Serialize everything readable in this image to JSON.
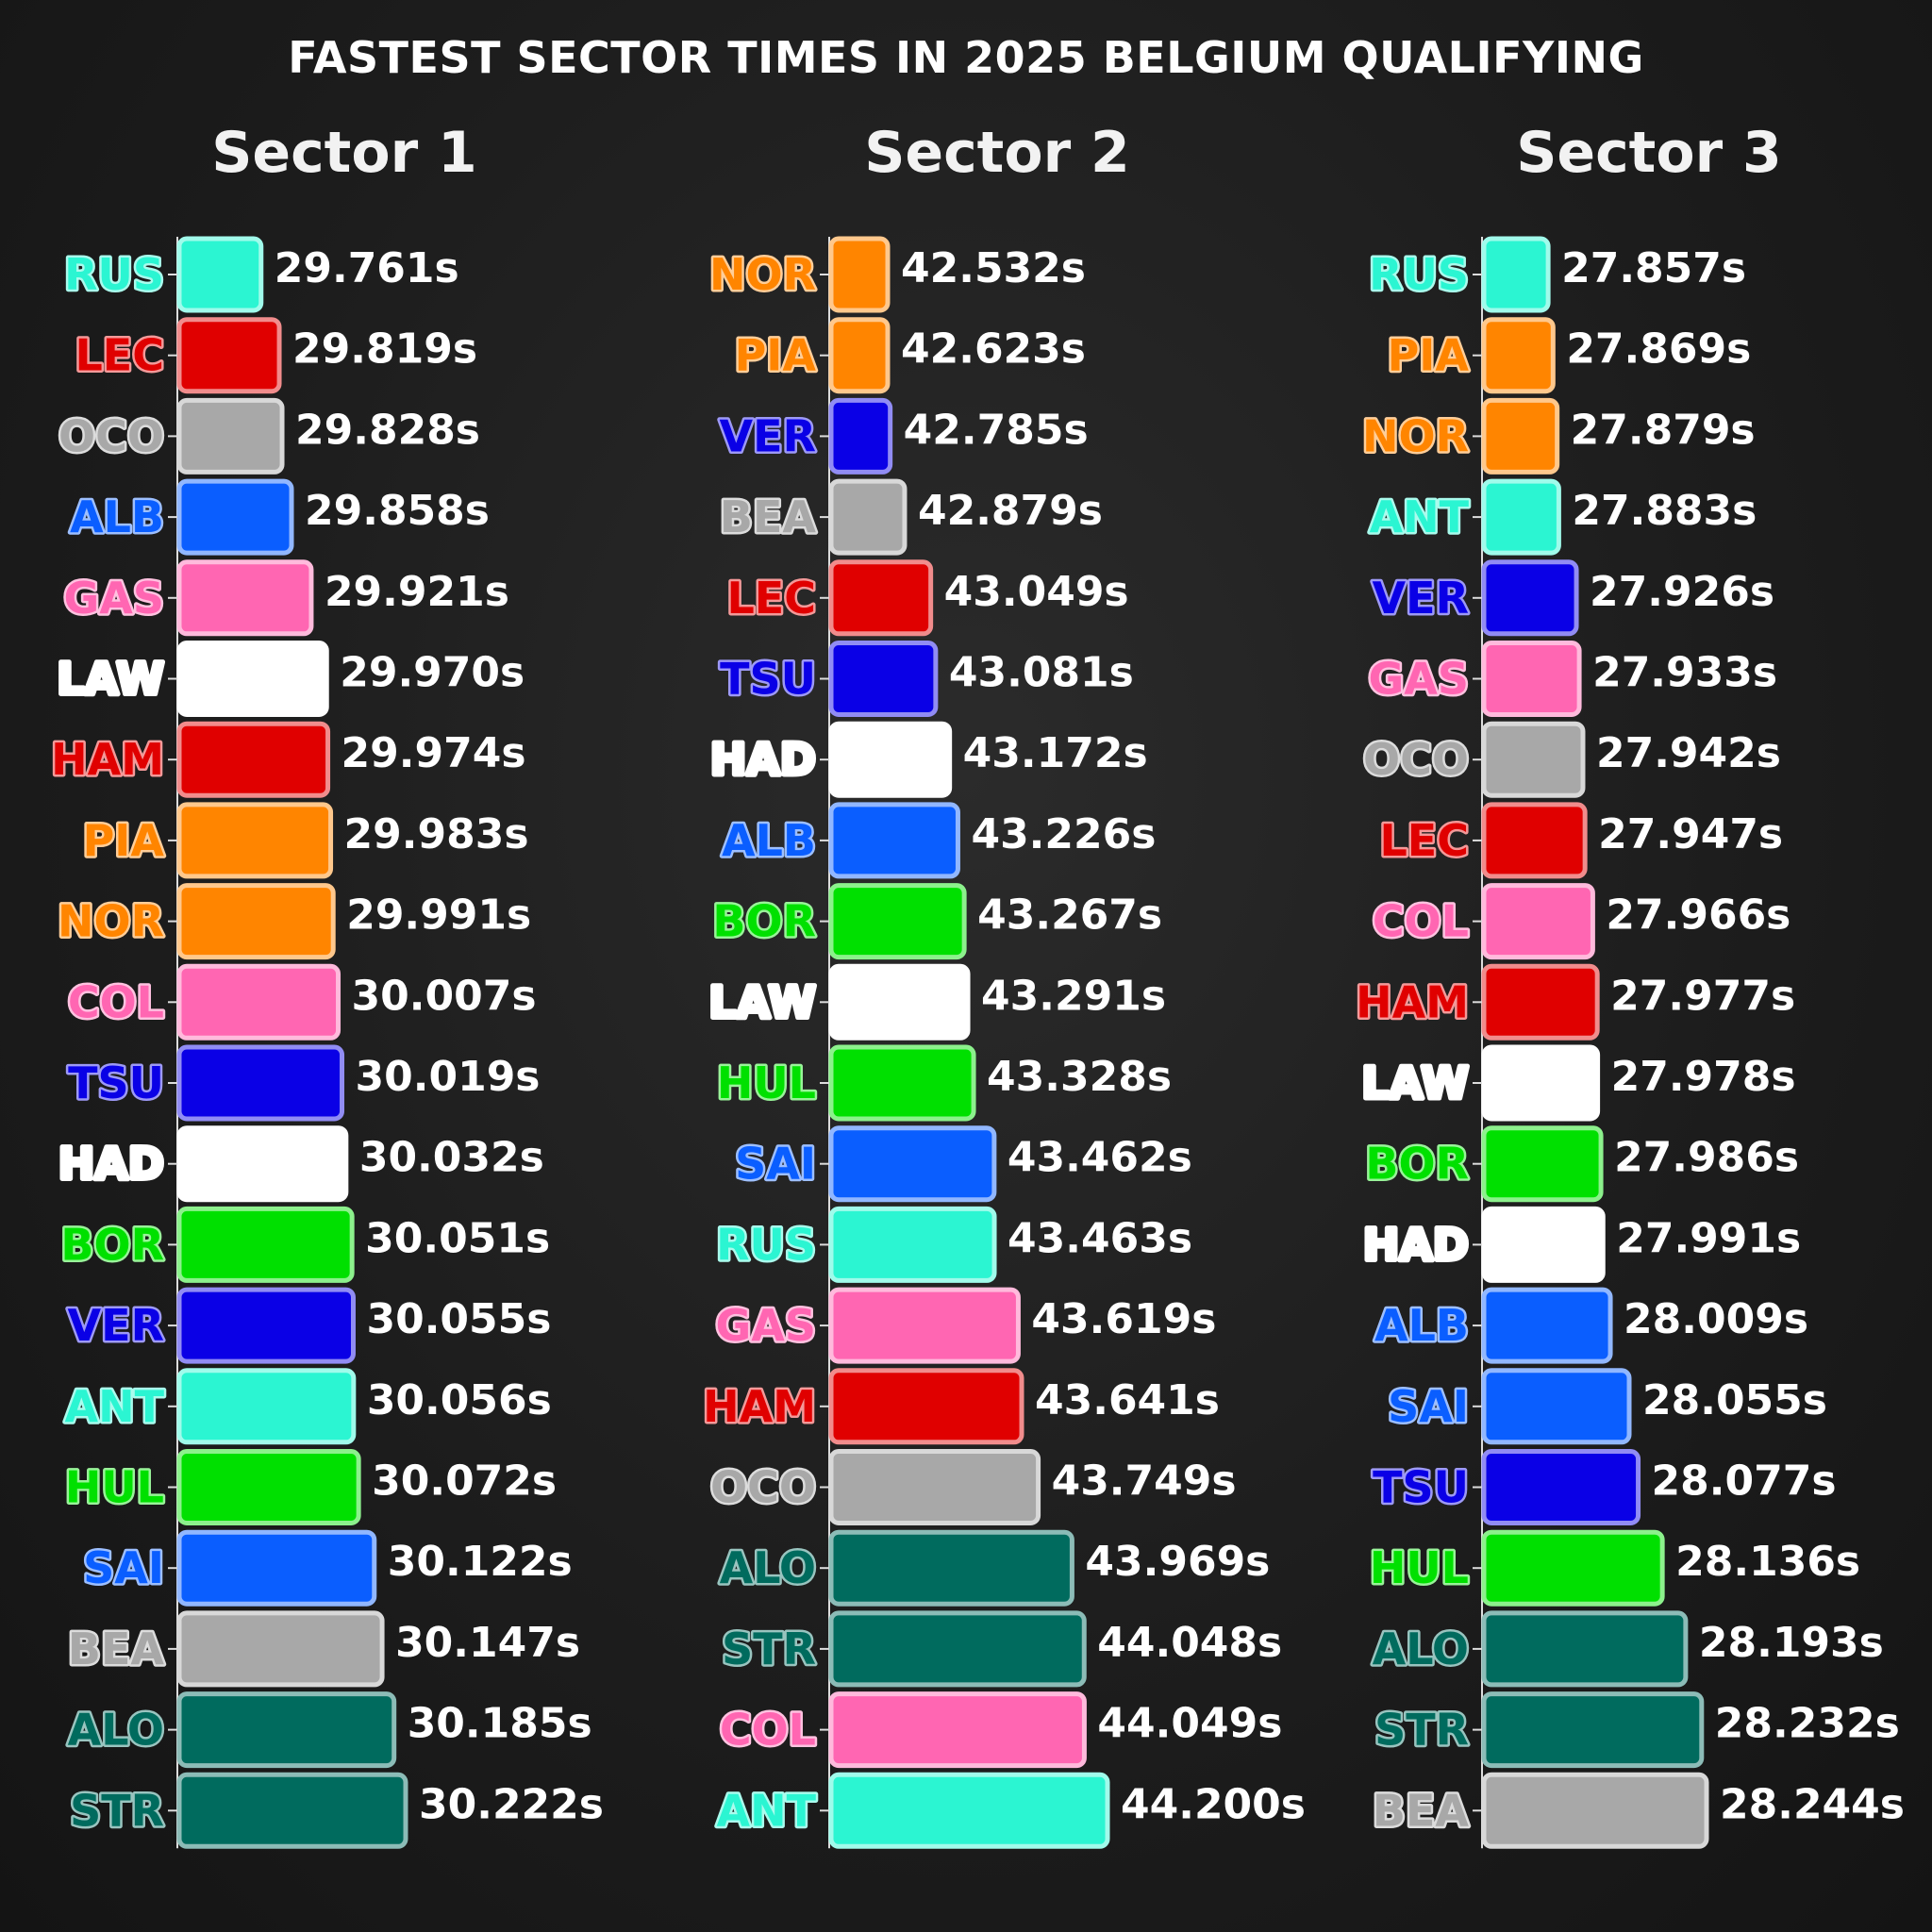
{
  "title": "FASTEST SECTOR TIMES IN 2025 BELGIUM QUALIFYING",
  "team_colors": {
    "mercedes": "#2BF5D2",
    "ferrari": "#E00000",
    "alpine_grey": "#A8A8A8",
    "williams": "#0A5EFF",
    "alpine_pink": "#FF66B2",
    "racing_bulls": "#FFFFFF",
    "mclaren": "#FF8500",
    "red_bull": "#0A00E6",
    "sauber": "#00E000",
    "aston_martin": "#006B5E",
    "haas": "#A8A8A8"
  },
  "chart_data": [
    {
      "type": "bar",
      "orientation": "horizontal",
      "title": "Sector 1",
      "unit": "s",
      "categories": [
        "RUS",
        "LEC",
        "OCO",
        "ALB",
        "GAS",
        "LAW",
        "HAM",
        "PIA",
        "NOR",
        "COL",
        "TSU",
        "HAD",
        "BOR",
        "VER",
        "ANT",
        "HUL",
        "SAI",
        "BEA",
        "ALO",
        "STR"
      ],
      "values": [
        29.761,
        29.819,
        29.828,
        29.858,
        29.921,
        29.97,
        29.974,
        29.983,
        29.991,
        30.007,
        30.019,
        30.032,
        30.051,
        30.055,
        30.056,
        30.072,
        30.122,
        30.147,
        30.185,
        30.222
      ],
      "value_labels": [
        "29.761s",
        "29.819s",
        "29.828s",
        "29.858s",
        "29.921s",
        "29.970s",
        "29.974s",
        "29.983s",
        "29.991s",
        "30.007s",
        "30.019s",
        "30.032s",
        "30.051s",
        "30.055s",
        "30.056s",
        "30.072s",
        "30.122s",
        "30.147s",
        "30.185s",
        "30.222s"
      ],
      "colors": [
        "#2BF5D2",
        "#E00000",
        "#A8A8A8",
        "#0A5EFF",
        "#FF66B2",
        "#FFFFFF",
        "#E00000",
        "#FF8500",
        "#FF8500",
        "#FF66B2",
        "#0A00E6",
        "#FFFFFF",
        "#00E000",
        "#0A00E6",
        "#2BF5D2",
        "#00E000",
        "#0A5EFF",
        "#A8A8A8",
        "#006B5E",
        "#006B5E"
      ],
      "xlim": [
        29.5,
        30.222
      ]
    },
    {
      "type": "bar",
      "orientation": "horizontal",
      "title": "Sector 2",
      "unit": "s",
      "categories": [
        "NOR",
        "PIA",
        "VER",
        "BEA",
        "LEC",
        "TSU",
        "HAD",
        "ALB",
        "BOR",
        "LAW",
        "HUL",
        "SAI",
        "RUS",
        "GAS",
        "HAM",
        "OCO",
        "ALO",
        "STR",
        "COL",
        "ANT"
      ],
      "values": [
        42.532,
        42.623,
        42.785,
        42.879,
        43.049,
        43.081,
        43.172,
        43.226,
        43.267,
        43.291,
        43.328,
        43.462,
        43.463,
        43.619,
        43.641,
        43.749,
        43.969,
        44.048,
        44.049,
        44.2
      ],
      "value_labels": [
        "42.532s",
        "42.623s",
        "42.785s",
        "42.879s",
        "43.049s",
        "43.081s",
        "43.172s",
        "43.226s",
        "43.267s",
        "43.291s",
        "43.328s",
        "43.462s",
        "43.463s",
        "43.619s",
        "43.641s",
        "43.749s",
        "43.969s",
        "44.048s",
        "44.049s",
        "44.200s"
      ],
      "colors": [
        "#FF8500",
        "#FF8500",
        "#0A00E6",
        "#A8A8A8",
        "#E00000",
        "#0A00E6",
        "#FFFFFF",
        "#0A5EFF",
        "#00E000",
        "#FFFFFF",
        "#00E000",
        "#0A5EFF",
        "#2BF5D2",
        "#FF66B2",
        "#E00000",
        "#A8A8A8",
        "#006B5E",
        "#006B5E",
        "#FF66B2",
        "#2BF5D2"
      ],
      "xlim": [
        42.4,
        44.2
      ]
    },
    {
      "type": "bar",
      "orientation": "horizontal",
      "title": "Sector 3",
      "unit": "s",
      "categories": [
        "RUS",
        "PIA",
        "NOR",
        "ANT",
        "VER",
        "GAS",
        "OCO",
        "LEC",
        "COL",
        "HAM",
        "LAW",
        "BOR",
        "HAD",
        "ALB",
        "SAI",
        "TSU",
        "HUL",
        "ALO",
        "STR",
        "BEA"
      ],
      "values": [
        27.857,
        27.869,
        27.879,
        27.883,
        27.926,
        27.933,
        27.942,
        27.947,
        27.966,
        27.977,
        27.978,
        27.986,
        27.991,
        28.009,
        28.055,
        28.077,
        28.136,
        28.193,
        28.232,
        28.244
      ],
      "value_labels": [
        "27.857s",
        "27.869s",
        "27.879s",
        "27.883s",
        "27.926s",
        "27.933s",
        "27.942s",
        "27.947s",
        "27.966s",
        "27.977s",
        "27.978s",
        "27.986s",
        "27.991s",
        "28.009s",
        "28.055s",
        "28.077s",
        "28.136s",
        "28.193s",
        "28.232s",
        "28.244s"
      ],
      "colors": [
        "#2BF5D2",
        "#FF8500",
        "#FF8500",
        "#2BF5D2",
        "#0A00E6",
        "#FF66B2",
        "#A8A8A8",
        "#E00000",
        "#FF66B2",
        "#E00000",
        "#FFFFFF",
        "#00E000",
        "#FFFFFF",
        "#0A5EFF",
        "#0A5EFF",
        "#0A00E6",
        "#00E000",
        "#006B5E",
        "#006B5E",
        "#A8A8A8"
      ],
      "xlim": [
        27.7,
        28.244
      ]
    }
  ]
}
